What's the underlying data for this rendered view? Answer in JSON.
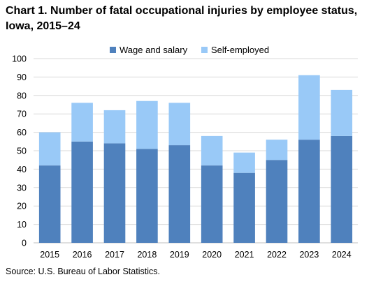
{
  "title": "Chart 1. Number of fatal occupational injuries by employee status, Iowa, 2015–24",
  "source": "Source: U.S. Bureau of Labor Statistics.",
  "colors": {
    "wage": "#4f81bd",
    "self": "#99c9f7",
    "grid": "#d9d9d9",
    "axis": "#bfbfbf"
  },
  "chart_data": {
    "type": "bar",
    "stacked": true,
    "title": "Chart 1. Number of fatal occupational injuries by employee status, Iowa, 2015–24",
    "categories": [
      "2015",
      "2016",
      "2017",
      "2018",
      "2019",
      "2020",
      "2021",
      "2022",
      "2023",
      "2024"
    ],
    "series": [
      {
        "name": "Wage and salary",
        "values": [
          42,
          55,
          54,
          51,
          53,
          42,
          38,
          45,
          56,
          58
        ]
      },
      {
        "name": "Self-employed",
        "values": [
          18,
          21,
          18,
          26,
          23,
          16,
          11,
          11,
          35,
          25
        ]
      }
    ],
    "ylim": [
      0,
      100
    ],
    "yticks": [
      "0",
      "10",
      "20",
      "30",
      "40",
      "50",
      "60",
      "70",
      "80",
      "90",
      "100"
    ],
    "grid": true,
    "legend": "top-center"
  }
}
